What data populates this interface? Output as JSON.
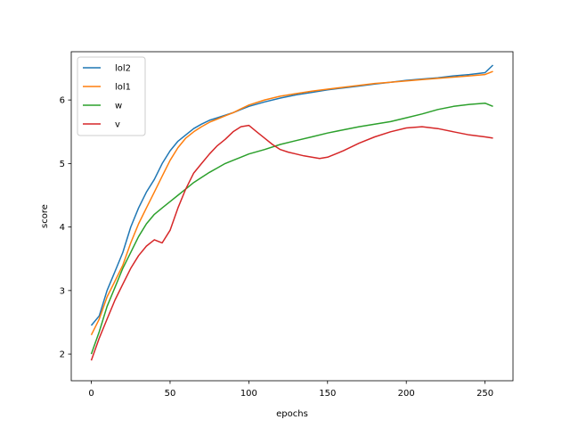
{
  "chart_data": {
    "type": "line",
    "title": "",
    "xlabel": "epochs",
    "ylabel": "score",
    "xlim": [
      -12.75,
      267.75
    ],
    "ylim": [
      1.58,
      6.76
    ],
    "xticks": [
      0,
      50,
      100,
      150,
      200,
      250
    ],
    "yticks": [
      2,
      3,
      4,
      5,
      6
    ],
    "grid": false,
    "legend_position": "top-left",
    "series": [
      {
        "name": "lol2",
        "color": "#1f77b4",
        "x": [
          0,
          5,
          10,
          15,
          20,
          25,
          30,
          35,
          40,
          45,
          50,
          55,
          60,
          65,
          70,
          75,
          80,
          85,
          90,
          95,
          100,
          110,
          120,
          130,
          140,
          150,
          160,
          170,
          180,
          190,
          200,
          210,
          220,
          230,
          240,
          250,
          255
        ],
        "y": [
          2.45,
          2.6,
          3.0,
          3.3,
          3.6,
          4.0,
          4.3,
          4.55,
          4.75,
          5.0,
          5.2,
          5.35,
          5.45,
          5.55,
          5.62,
          5.68,
          5.72,
          5.76,
          5.8,
          5.85,
          5.9,
          5.97,
          6.03,
          6.08,
          6.12,
          6.16,
          6.19,
          6.22,
          6.25,
          6.28,
          6.31,
          6.33,
          6.35,
          6.38,
          6.4,
          6.43,
          6.55
        ]
      },
      {
        "name": "lol1",
        "color": "#ff7f0e",
        "x": [
          0,
          5,
          10,
          15,
          20,
          25,
          30,
          35,
          40,
          45,
          50,
          55,
          60,
          65,
          70,
          75,
          80,
          85,
          90,
          95,
          100,
          110,
          120,
          130,
          140,
          150,
          160,
          170,
          180,
          190,
          200,
          210,
          220,
          230,
          240,
          250,
          255
        ],
        "y": [
          2.3,
          2.55,
          2.9,
          3.15,
          3.4,
          3.75,
          4.05,
          4.3,
          4.55,
          4.8,
          5.05,
          5.25,
          5.4,
          5.5,
          5.58,
          5.65,
          5.7,
          5.75,
          5.8,
          5.86,
          5.92,
          6.0,
          6.06,
          6.1,
          6.14,
          6.17,
          6.2,
          6.23,
          6.26,
          6.28,
          6.3,
          6.32,
          6.34,
          6.36,
          6.38,
          6.4,
          6.45
        ]
      },
      {
        "name": "w",
        "color": "#2ca02c",
        "x": [
          0,
          5,
          10,
          15,
          20,
          25,
          30,
          35,
          40,
          45,
          50,
          55,
          60,
          65,
          70,
          75,
          80,
          85,
          90,
          95,
          100,
          110,
          120,
          130,
          140,
          150,
          160,
          170,
          180,
          190,
          200,
          210,
          220,
          230,
          240,
          250,
          255
        ],
        "y": [
          2.0,
          2.35,
          2.75,
          3.05,
          3.35,
          3.6,
          3.85,
          4.05,
          4.2,
          4.3,
          4.4,
          4.5,
          4.6,
          4.7,
          4.78,
          4.86,
          4.93,
          5.0,
          5.05,
          5.1,
          5.15,
          5.22,
          5.3,
          5.36,
          5.42,
          5.48,
          5.53,
          5.58,
          5.62,
          5.66,
          5.72,
          5.78,
          5.85,
          5.9,
          5.93,
          5.95,
          5.9
        ]
      },
      {
        "name": "v",
        "color": "#d62728",
        "x": [
          0,
          5,
          10,
          15,
          20,
          25,
          30,
          35,
          40,
          45,
          50,
          55,
          60,
          65,
          70,
          75,
          80,
          85,
          90,
          95,
          100,
          105,
          110,
          115,
          120,
          125,
          130,
          135,
          140,
          145,
          150,
          160,
          170,
          180,
          190,
          200,
          210,
          220,
          230,
          240,
          250,
          255
        ],
        "y": [
          1.9,
          2.25,
          2.55,
          2.85,
          3.1,
          3.35,
          3.55,
          3.7,
          3.8,
          3.75,
          3.95,
          4.3,
          4.6,
          4.85,
          5.0,
          5.15,
          5.28,
          5.38,
          5.5,
          5.58,
          5.6,
          5.5,
          5.4,
          5.3,
          5.22,
          5.18,
          5.15,
          5.12,
          5.1,
          5.08,
          5.1,
          5.2,
          5.32,
          5.42,
          5.5,
          5.56,
          5.58,
          5.55,
          5.5,
          5.45,
          5.42,
          5.4
        ]
      }
    ]
  }
}
